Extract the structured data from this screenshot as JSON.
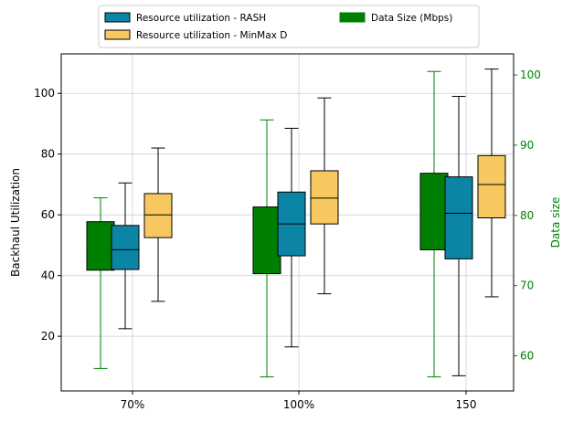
{
  "chart_data": {
    "type": "box",
    "categories": [
      "70%",
      "100%",
      "150"
    ],
    "ylabel": "Backhaul Utilization",
    "y2label": "Data size",
    "ylim": [
      2,
      113
    ],
    "y2lim": [
      55,
      103
    ],
    "yticks": [
      20,
      40,
      60,
      80,
      100
    ],
    "y2ticks": [
      60,
      70,
      80,
      90,
      100
    ],
    "grid": true,
    "legend_placement": "top-center (above plot, 2 columns)",
    "colors": {
      "rash": "#0b84a5",
      "minmax": "#f6c85f",
      "data": "#008000",
      "y2axis": "#008000"
    },
    "series": [
      {
        "name": "Data Size (Mbps)",
        "axis": "right",
        "boxes": [
          {
            "min": 58.2,
            "q1": 72.2,
            "median": 75.8,
            "q3": 79.1,
            "max": 82.5
          },
          {
            "min": 57.0,
            "q1": 71.7,
            "median": 77.4,
            "q3": 81.2,
            "max": 93.6
          },
          {
            "min": 57.0,
            "q1": 75.1,
            "median": 80.0,
            "q3": 86.0,
            "max": 100.5
          }
        ]
      },
      {
        "name": "Resource utilization - RASH",
        "axis": "left",
        "boxes": [
          {
            "min": 22.5,
            "q1": 42.0,
            "median": 48.5,
            "q3": 56.5,
            "max": 70.5
          },
          {
            "min": 16.5,
            "q1": 46.5,
            "median": 57.0,
            "q3": 67.5,
            "max": 88.5
          },
          {
            "min": 7.0,
            "q1": 45.5,
            "median": 60.5,
            "q3": 72.5,
            "max": 99.0
          }
        ]
      },
      {
        "name": "Resource utilization - MinMax D",
        "axis": "left",
        "boxes": [
          {
            "min": 31.5,
            "q1": 52.5,
            "median": 60.0,
            "q3": 67.0,
            "max": 82.0
          },
          {
            "min": 34.0,
            "q1": 57.0,
            "median": 65.5,
            "q3": 74.5,
            "max": 98.5
          },
          {
            "min": 33.0,
            "q1": 59.0,
            "median": 70.0,
            "q3": 79.5,
            "max": 108.0
          }
        ]
      }
    ],
    "legend": [
      {
        "label": "Resource utilization - RASH",
        "color": "#0b84a5",
        "edge": true
      },
      {
        "label": "Resource utilization - MinMax D",
        "color": "#f6c85f",
        "edge": true
      },
      {
        "label": "Data Size (Mbps)",
        "color": "#008000",
        "edge": false
      }
    ]
  }
}
